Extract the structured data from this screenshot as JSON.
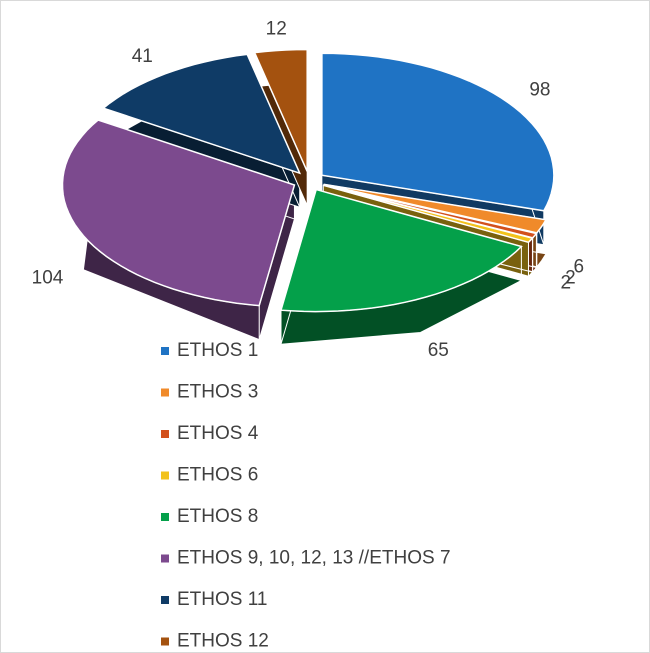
{
  "chart_data": {
    "type": "pie3d",
    "categories": [
      "ETHOS 1",
      "ETHOS 3",
      "ETHOS 4",
      "ETHOS 6",
      "ETHOS 8",
      "ETHOS 9, 10, 12, 13 //ETHOS 7",
      "ETHOS 11",
      "ETHOS 12"
    ],
    "values": [
      98,
      6,
      2,
      2,
      65,
      104,
      41,
      12
    ],
    "colors": [
      "#1f73c4",
      "#f08a2a",
      "#d2501c",
      "#f2c21b",
      "#04a04a",
      "#7c4a8e",
      "#0f3b66",
      "#a4520f"
    ],
    "legend": "bottom"
  }
}
